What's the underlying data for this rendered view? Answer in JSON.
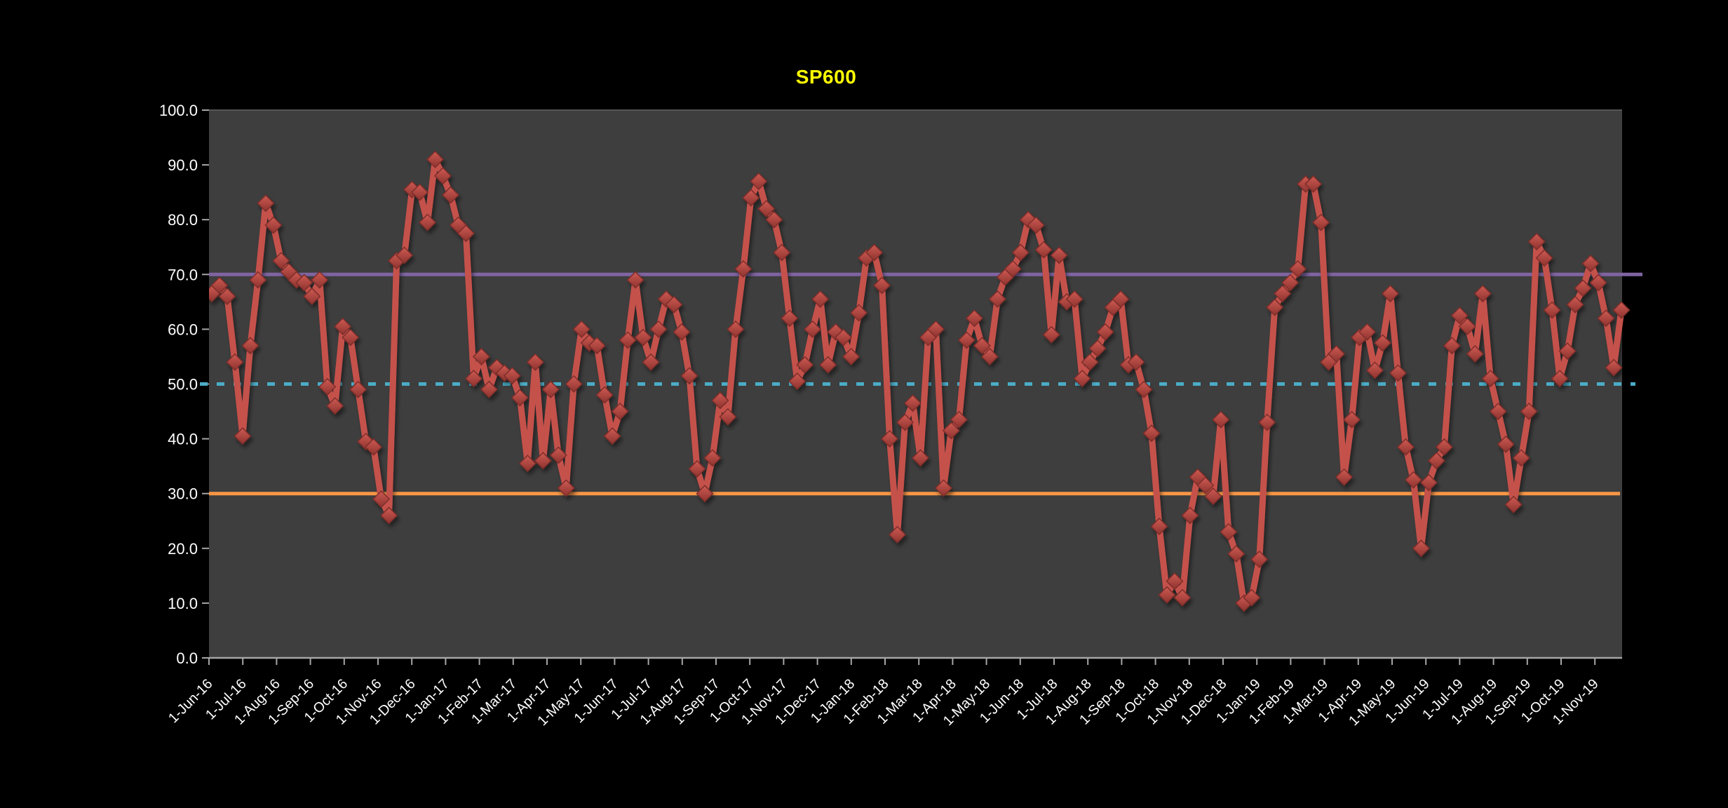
{
  "chart": {
    "title": "SP600",
    "colors": {
      "background": "#000000",
      "plot_background": "#3E3E3E",
      "plot_top_edge": "#555555",
      "axis": "#A6A6A6",
      "labels": "#FFFFFF",
      "title": "#FFFF00",
      "series_line": "#C5514C",
      "marker_fill_top": "#CE5A52",
      "marker_fill_bottom": "#8E332F",
      "marker_stroke": "#7E2D2B"
    }
  },
  "chart_data": {
    "type": "line",
    "title": "SP600",
    "xlabel": "",
    "ylabel": "",
    "ylim": [
      0,
      100
    ],
    "ytick_step": 10,
    "ytick_labels": [
      "0.0",
      "10.0",
      "20.0",
      "30.0",
      "40.0",
      "50.0",
      "60.0",
      "70.0",
      "80.0",
      "90.0",
      "100.0"
    ],
    "x_tick_labels": [
      "1-Jun-16",
      "1-Jul-16",
      "1-Aug-16",
      "1-Sep-16",
      "1-Oct-16",
      "1-Nov-16",
      "1-Dec-16",
      "1-Jan-17",
      "1-Feb-17",
      "1-Mar-17",
      "1-Apr-17",
      "1-May-17",
      "1-Jun-17",
      "1-Jul-17",
      "1-Aug-17",
      "1-Sep-17",
      "1-Oct-17",
      "1-Nov-17",
      "1-Dec-17",
      "1-Jan-18",
      "1-Feb-18",
      "1-Mar-18",
      "1-Apr-18",
      "1-May-18",
      "1-Jun-18",
      "1-Jul-18",
      "1-Aug-18",
      "1-Sep-18",
      "1-Oct-18",
      "1-Nov-18",
      "1-Dec-18",
      "1-Jan-19",
      "1-Feb-19",
      "1-Mar-19",
      "1-Apr-19",
      "1-May-19",
      "1-Jun-19",
      "1-Jul-19",
      "1-Aug-19",
      "1-Sep-19",
      "1-Oct-19",
      "1-Nov-19"
    ],
    "grid": false,
    "legend": false,
    "series": [
      {
        "name": "SP600",
        "color": "#C5514C",
        "marker": "diamond",
        "values": [
          66.5,
          68,
          66,
          54,
          40.5,
          57,
          69,
          83,
          79,
          72.5,
          70.5,
          69,
          68.5,
          66,
          69,
          49.5,
          46,
          60.5,
          58.5,
          49,
          39.5,
          38.5,
          29,
          26,
          72.5,
          73.5,
          85.5,
          85,
          79.5,
          91,
          88,
          84.5,
          79,
          77.5,
          51,
          55,
          49,
          53,
          52,
          51.5,
          47.5,
          35.5,
          54,
          36,
          49,
          37,
          31,
          50,
          60,
          57.5,
          57,
          48,
          40.5,
          45,
          58,
          69,
          58.5,
          54,
          60,
          65.5,
          64.5,
          59.5,
          51.5,
          34.5,
          30,
          36.5,
          47,
          44,
          60,
          71,
          84,
          87,
          82,
          80,
          74,
          62,
          50.5,
          53.5,
          60,
          65.5,
          53.5,
          59.5,
          58.5,
          55,
          63,
          73,
          74,
          68,
          40,
          22.5,
          43,
          46.5,
          36.5,
          58.5,
          60,
          31,
          41.5,
          43.5,
          58,
          62,
          57,
          55,
          65.5,
          69.5,
          71,
          74,
          80,
          79,
          74.5,
          59,
          73.5,
          65,
          65.5,
          51,
          54,
          56.5,
          59.5,
          64,
          65.5,
          53.5,
          54,
          49,
          41,
          24,
          11.5,
          14,
          11,
          26,
          33,
          31.5,
          29.5,
          43.5,
          23,
          19,
          10,
          11,
          18,
          43,
          64,
          66.5,
          68.5,
          71,
          86.5,
          86.5,
          79.5,
          54,
          55.5,
          33,
          43.5,
          58.5,
          59.5,
          52.5,
          57.5,
          66.5,
          52,
          38.5,
          32.5,
          20,
          32,
          36,
          38.5,
          57,
          62.5,
          60.5,
          55.5,
          66.5,
          51,
          45,
          39,
          28,
          36.5,
          45,
          76,
          73,
          63.5,
          51,
          56,
          64.5,
          67.5,
          72,
          68.5,
          62,
          53,
          63.5
        ]
      }
    ],
    "reference_lines": [
      {
        "value": 70,
        "color": "#8064A2",
        "style": "solid"
      },
      {
        "value": 50,
        "color": "#4BACC6",
        "style": "dotted"
      },
      {
        "value": 30,
        "color": "#F79646",
        "style": "solid"
      }
    ]
  }
}
